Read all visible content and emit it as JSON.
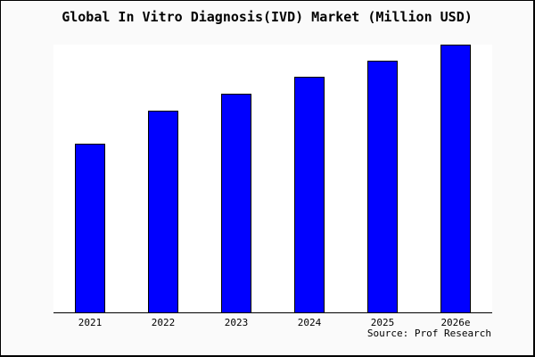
{
  "title": "Global In Vitro Diagnosis(IVD) Market (Million USD)",
  "source_label": "Source: Prof Research",
  "chart_data": {
    "type": "bar",
    "title": "Global In Vitro Diagnosis(IVD) Market (Million USD)",
    "categories": [
      "2021",
      "2022",
      "2023",
      "2024",
      "2025",
      "2026e"
    ],
    "values": [
      62.9,
      75.3,
      81.7,
      87.9,
      94.0,
      100.0
    ],
    "value_note": "no y-axis or data labels shown in chart; values estimated as relative bar heights with 2026e = 100",
    "xlabel": "",
    "ylabel": "",
    "ylim": [
      0,
      100
    ],
    "grid": false,
    "legend": null,
    "bar_color": "#0000ff",
    "bar_border_color": "#000000",
    "plot_bg": "#ffffff",
    "figure_bg": "#fafafa"
  }
}
